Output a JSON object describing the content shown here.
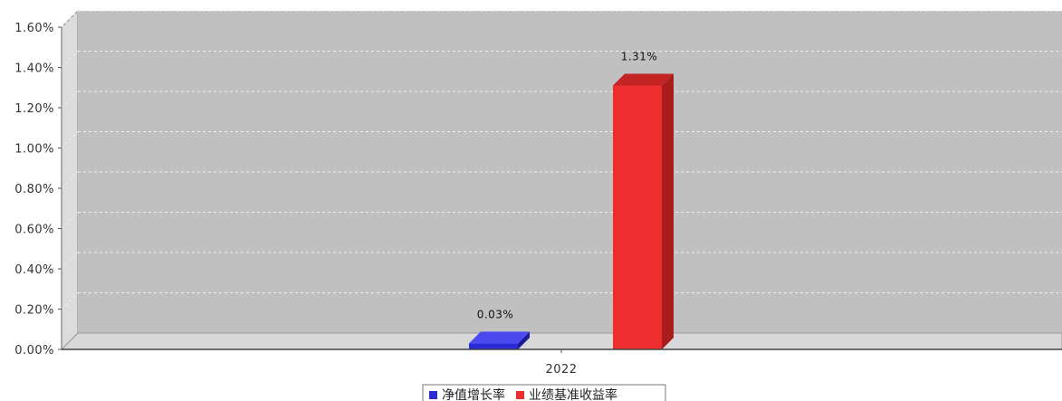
{
  "chart_data": {
    "type": "bar",
    "categories": [
      "2022"
    ],
    "series": [
      {
        "name": "净值增长率",
        "values": [
          0.03
        ],
        "labels": [
          "0.03%"
        ],
        "color": "#2b2bd6",
        "side_color": "#1a1a99",
        "top_color": "#4a4af0"
      },
      {
        "name": "业绩基准收益率",
        "values": [
          1.31
        ],
        "labels": [
          "1.31%"
        ],
        "color": "#ee2e2e",
        "side_color": "#a81c1c",
        "top_color": "#c42424"
      }
    ],
    "y_ticks": [
      {
        "value": 0.0,
        "label": "0.00%"
      },
      {
        "value": 0.2,
        "label": "0.20%"
      },
      {
        "value": 0.4,
        "label": "0.40%"
      },
      {
        "value": 0.6,
        "label": "0.60%"
      },
      {
        "value": 0.8,
        "label": "0.80%"
      },
      {
        "value": 1.0,
        "label": "1.00%"
      },
      {
        "value": 1.2,
        "label": "1.20%"
      },
      {
        "value": 1.4,
        "label": "1.40%"
      },
      {
        "value": 1.6,
        "label": "1.60%"
      }
    ],
    "ylim": [
      0,
      1.6
    ],
    "grid": true,
    "legend_position": "bottom",
    "plot_background": "#c0c0c0",
    "title": "",
    "xlabel": "",
    "ylabel": ""
  }
}
